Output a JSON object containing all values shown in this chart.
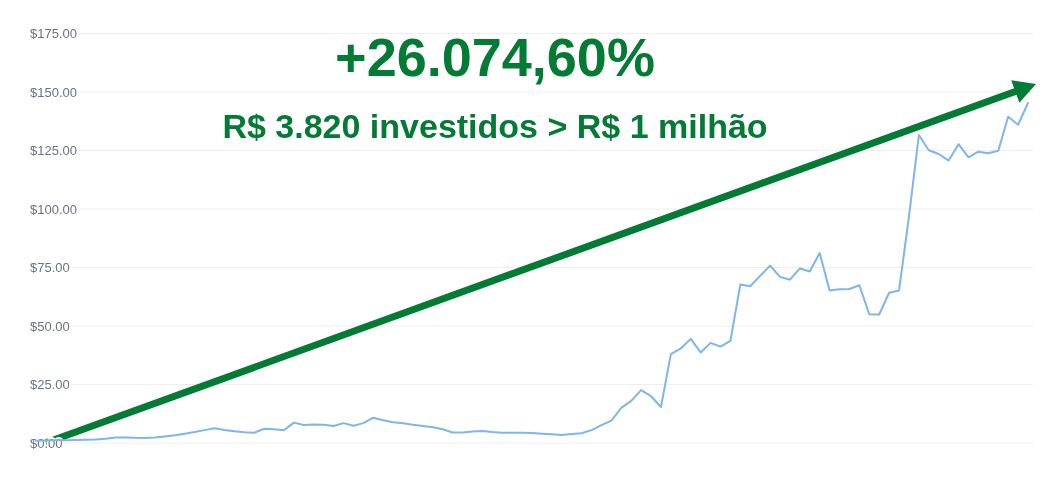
{
  "chart_data": {
    "type": "line",
    "title": "+26.074,60%",
    "subtitle": "R$ 3.820 investidos > R$ 1 milhão",
    "categories": [
      null,
      null,
      null,
      null,
      null,
      null,
      null,
      null,
      null,
      null,
      null,
      null,
      null,
      null,
      null,
      null,
      null,
      null,
      null,
      null,
      null,
      null,
      null,
      null,
      null,
      null,
      null,
      null,
      null,
      null,
      null,
      null,
      null,
      null,
      null,
      null,
      null,
      null,
      null,
      null,
      null,
      null,
      null,
      null,
      null,
      null,
      null,
      null,
      null,
      null,
      null,
      null,
      null,
      null,
      null,
      null,
      null,
      null,
      null,
      null,
      null,
      null,
      null,
      null,
      null,
      null,
      null,
      null,
      null,
      null,
      null,
      null,
      null,
      null,
      null,
      null,
      null,
      null,
      null,
      null,
      null,
      null,
      null,
      null,
      null,
      null,
      null,
      null,
      null,
      null,
      null,
      null,
      null,
      null,
      null,
      null,
      null,
      null,
      null,
      null,
      null
    ],
    "series": [
      {
        "color": "#7fb5ea",
        "values": [
          1,
          1.1,
          1.2,
          1.2,
          1.3,
          1.4,
          1.5,
          1.8,
          2.3,
          2.4,
          2.2,
          2.1,
          2.3,
          2.8,
          3.3,
          4,
          4.7,
          5.5,
          6.3,
          5.6,
          5,
          4.6,
          4.4,
          6.1,
          5.9,
          5.5,
          8.7,
          7.7,
          7.9,
          7.8,
          7.3,
          8.5,
          7.4,
          8.5,
          10.8,
          9.7,
          8.9,
          8.4,
          7.8,
          7.3,
          6.7,
          5.9,
          4.5,
          4.5,
          4.9,
          5.1,
          4.7,
          4.4,
          4.4,
          4.4,
          4.3,
          4,
          3.7,
          3.4,
          3.8,
          4.2,
          5.5,
          7.6,
          9.6,
          15,
          18,
          22.6,
          20,
          15.4,
          38,
          40.4,
          44.5,
          38.7,
          42.8,
          41.2,
          43.6,
          67.7,
          67,
          71.4,
          75.8,
          71,
          69.8,
          74.6,
          73.3,
          81.2,
          65.2,
          65.7,
          65.8,
          67.4,
          55,
          54.9,
          64.2,
          65.2,
          96.7,
          131.6,
          125.1,
          123.5,
          120.7,
          127.7,
          122.1,
          124.5,
          123.8,
          124.9,
          139.4,
          136,
          145.3
        ]
      }
    ],
    "ylim": [
      0,
      175
    ],
    "yticks": [
      {
        "value": 0,
        "label": "$0.00"
      },
      {
        "value": 25,
        "label": "$25.00"
      },
      {
        "value": 50,
        "label": "$50.00"
      },
      {
        "value": 75,
        "label": "$75.00"
      },
      {
        "value": 100,
        "label": "$100.00"
      },
      {
        "value": 125,
        "label": "$125.00"
      },
      {
        "value": 150,
        "label": "$150.00"
      },
      {
        "value": 175,
        "label": "$175.00"
      }
    ],
    "grid": "y",
    "tick_labels": "y",
    "marker": "none",
    "line_style": "solid"
  }
}
